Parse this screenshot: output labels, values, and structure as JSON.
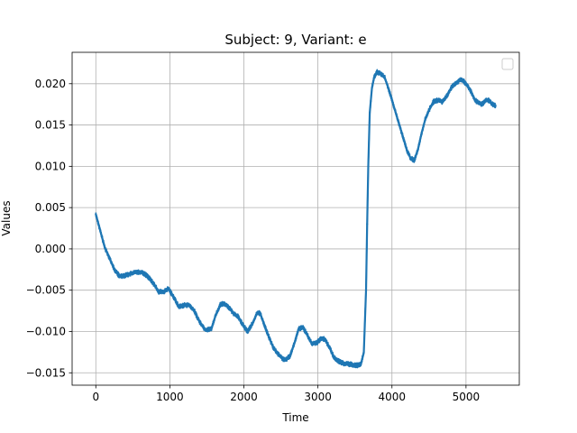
{
  "chart_data": {
    "type": "line",
    "title": "Subject: 9, Variant: e",
    "xlabel": "Time",
    "ylabel": "Values",
    "xlim": [
      -320,
      5720
    ],
    "ylim": [
      -0.0165,
      0.0238
    ],
    "grid": true,
    "legend": {
      "position": "top-right",
      "entries": []
    },
    "x_ticks": [
      0,
      1000,
      2000,
      3000,
      4000,
      5000
    ],
    "x_tick_labels": [
      "0",
      "1000",
      "2000",
      "3000",
      "4000",
      "5000"
    ],
    "y_ticks": [
      -0.015,
      -0.01,
      -0.005,
      0.0,
      0.005,
      0.01,
      0.015,
      0.02
    ],
    "y_tick_labels": [
      "−0.015",
      "−0.010",
      "−0.005",
      "0.000",
      "0.005",
      "0.010",
      "0.015",
      "0.020"
    ],
    "series": [
      {
        "name": "",
        "color": "#1f77b4",
        "noise_band": 0.0006,
        "x": [
          0,
          60,
          120,
          180,
          250,
          320,
          400,
          470,
          550,
          620,
          700,
          780,
          850,
          920,
          980,
          1050,
          1120,
          1200,
          1260,
          1330,
          1400,
          1480,
          1560,
          1620,
          1680,
          1730,
          1790,
          1850,
          1920,
          2000,
          2050,
          2120,
          2180,
          2220,
          2260,
          2330,
          2400,
          2470,
          2550,
          2620,
          2680,
          2740,
          2800,
          2860,
          2920,
          2990,
          3050,
          3100,
          3160,
          3220,
          3300,
          3370,
          3450,
          3520,
          3580,
          3620,
          3650,
          3665,
          3680,
          3700,
          3730,
          3760,
          3800,
          3850,
          3900,
          3950,
          4000,
          4050,
          4100,
          4150,
          4200,
          4250,
          4300,
          4350,
          4400,
          4450,
          4500,
          4560,
          4620,
          4680,
          4740,
          4800,
          4860,
          4920,
          4970,
          5020,
          5080,
          5120,
          5170,
          5220,
          5270,
          5310,
          5350,
          5400
        ],
        "y": [
          0.0042,
          0.0022,
          0.0002,
          -0.001,
          -0.0025,
          -0.0033,
          -0.0032,
          -0.003,
          -0.0028,
          -0.0028,
          -0.0033,
          -0.0042,
          -0.0052,
          -0.0052,
          -0.0048,
          -0.0058,
          -0.007,
          -0.0068,
          -0.0068,
          -0.0075,
          -0.0088,
          -0.0098,
          -0.0097,
          -0.008,
          -0.0068,
          -0.0066,
          -0.007,
          -0.0077,
          -0.0082,
          -0.0094,
          -0.01,
          -0.009,
          -0.0077,
          -0.0078,
          -0.0088,
          -0.0105,
          -0.012,
          -0.0128,
          -0.0135,
          -0.013,
          -0.0115,
          -0.0097,
          -0.0095,
          -0.0105,
          -0.0115,
          -0.0113,
          -0.0108,
          -0.011,
          -0.012,
          -0.0132,
          -0.0137,
          -0.0139,
          -0.014,
          -0.0141,
          -0.014,
          -0.0125,
          -0.005,
          0.003,
          0.01,
          0.0165,
          0.0195,
          0.0208,
          0.0214,
          0.0212,
          0.0208,
          0.0195,
          0.018,
          0.0165,
          0.015,
          0.0135,
          0.012,
          0.011,
          0.0107,
          0.012,
          0.014,
          0.0157,
          0.0168,
          0.0178,
          0.018,
          0.0178,
          0.0185,
          0.0195,
          0.02,
          0.0205,
          0.0203,
          0.0198,
          0.0188,
          0.018,
          0.0177,
          0.0175,
          0.018,
          0.018,
          0.0176,
          0.0173
        ]
      }
    ]
  }
}
